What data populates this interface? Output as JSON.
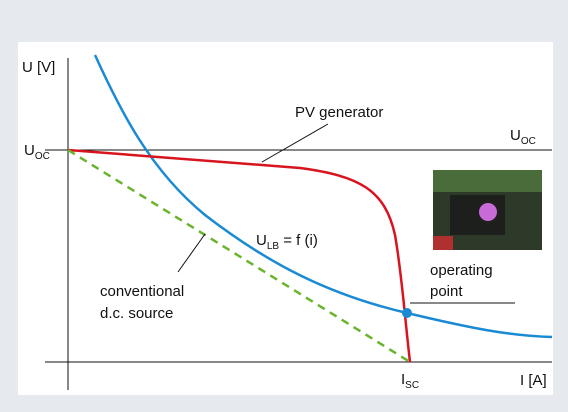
{
  "axes": {
    "y_label": "U [V]",
    "x_label": "I [A]"
  },
  "labels": {
    "uoc_left": {
      "main": "U",
      "sub": "OC"
    },
    "uoc_right": {
      "main": "U",
      "sub": "OC"
    },
    "isc": {
      "main": "I",
      "sub": "SC"
    },
    "pv_generator": "PV generator",
    "load_line": {
      "main": "U",
      "sub": "LB",
      "rest": " = f (i)"
    },
    "conventional": [
      "conventional",
      "d.c. source"
    ],
    "operating_point": [
      "operating",
      "point"
    ]
  }
}
